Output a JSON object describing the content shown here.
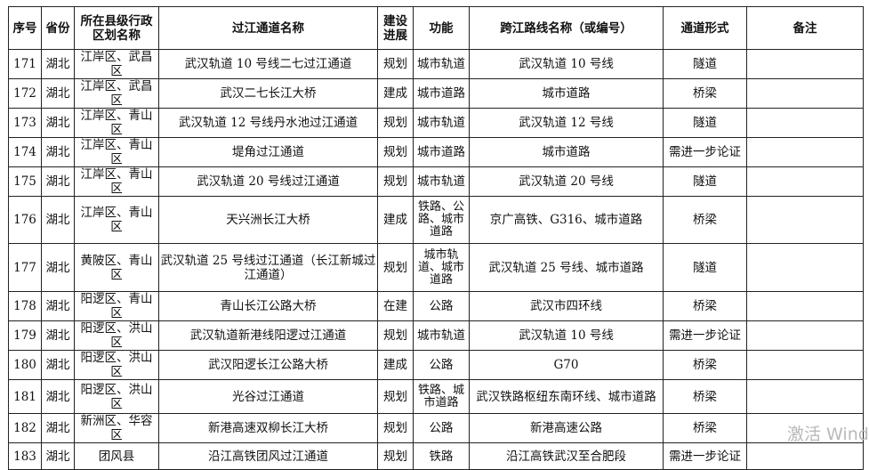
{
  "headers": [
    "序号",
    "省份",
    "所在县级行政区划名称",
    "过江通道名称",
    "建设进展",
    "功能",
    "跨江路线名称（或编号）",
    "通道形式",
    "备注"
  ],
  "rows": [
    {
      "no": "171",
      "province": "湖北",
      "district": "江岸区、武昌区",
      "name": "武汉轨道 10 号线二七过江通道",
      "progress": "规划",
      "function": "城市轨道",
      "route": "武汉轨道 10 号线",
      "form": "隧道",
      "note": ""
    },
    {
      "no": "172",
      "province": "湖北",
      "district": "江岸区、武昌区",
      "name": "武汉二七长江大桥",
      "progress": "建成",
      "function": "城市道路",
      "route": "城市道路",
      "form": "桥梁",
      "note": ""
    },
    {
      "no": "173",
      "province": "湖北",
      "district": "江岸区、青山区",
      "name": "武汉轨道 12 号线丹水池过江通道",
      "progress": "规划",
      "function": "城市轨道",
      "route": "武汉轨道 12 号线",
      "form": "隧道",
      "note": ""
    },
    {
      "no": "174",
      "province": "湖北",
      "district": "江岸区、青山区",
      "name": "堤角过江通道",
      "progress": "规划",
      "function": "城市道路",
      "route": "城市道路",
      "form": "需进一步论证",
      "note": ""
    },
    {
      "no": "175",
      "province": "湖北",
      "district": "江岸区、青山区",
      "name": "武汉轨道 20 号线过江通道",
      "progress": "规划",
      "function": "城市轨道",
      "route": "武汉轨道 20 号线",
      "form": "隧道",
      "note": ""
    },
    {
      "no": "176",
      "province": "湖北",
      "district": "江岸区、青山区",
      "name": "天兴洲长江大桥",
      "progress": "建成",
      "function": "铁路、公路、城市道路",
      "route": "京广高铁、G316、城市道路",
      "form": "桥梁",
      "note": ""
    },
    {
      "no": "177",
      "province": "湖北",
      "district": "黄陂区、青山区",
      "name": "武汉轨道 25 号线过江通道（长江新城过江通道）",
      "progress": "规划",
      "function": "城市轨道、城市道路",
      "route": "武汉轨道 25 号线、城市道路",
      "form": "隧道",
      "note": ""
    },
    {
      "no": "178",
      "province": "湖北",
      "district": "阳逻区、青山区",
      "name": "青山长江公路大桥",
      "progress": "在建",
      "function": "公路",
      "route": "武汉市四环线",
      "form": "桥梁",
      "note": ""
    },
    {
      "no": "179",
      "province": "湖北",
      "district": "阳逻区、洪山区",
      "name": "武汉轨道新港线阳逻过江通道",
      "progress": "规划",
      "function": "城市轨道",
      "route": "武汉轨道 10 号线",
      "form": "需进一步论证",
      "note": ""
    },
    {
      "no": "180",
      "province": "湖北",
      "district": "阳逻区、洪山区",
      "name": "武汉阳逻长江公路大桥",
      "progress": "建成",
      "function": "公路",
      "route": "G70",
      "form": "桥梁",
      "note": ""
    },
    {
      "no": "181",
      "province": "湖北",
      "district": "阳逻区、洪山区",
      "name": "光谷过江通道",
      "progress": "规划",
      "function": "铁路、城市道路",
      "route": "武汉铁路枢纽东南环线、城市道路",
      "form": "桥梁",
      "note": ""
    },
    {
      "no": "182",
      "province": "湖北",
      "district": "新洲区、华容区",
      "name": "新港高速双柳长江大桥",
      "progress": "规划",
      "function": "公路",
      "route": "新港高速公路",
      "form": "桥梁",
      "note": ""
    },
    {
      "no": "183",
      "province": "湖北",
      "district": "团风县",
      "name": "沿江高铁团风过江通道",
      "progress": "规划",
      "function": "铁路",
      "route": "沿江高铁武汉至合肥段",
      "form": "需进一步论证",
      "note": ""
    }
  ],
  "watermark": "激活 Windows"
}
